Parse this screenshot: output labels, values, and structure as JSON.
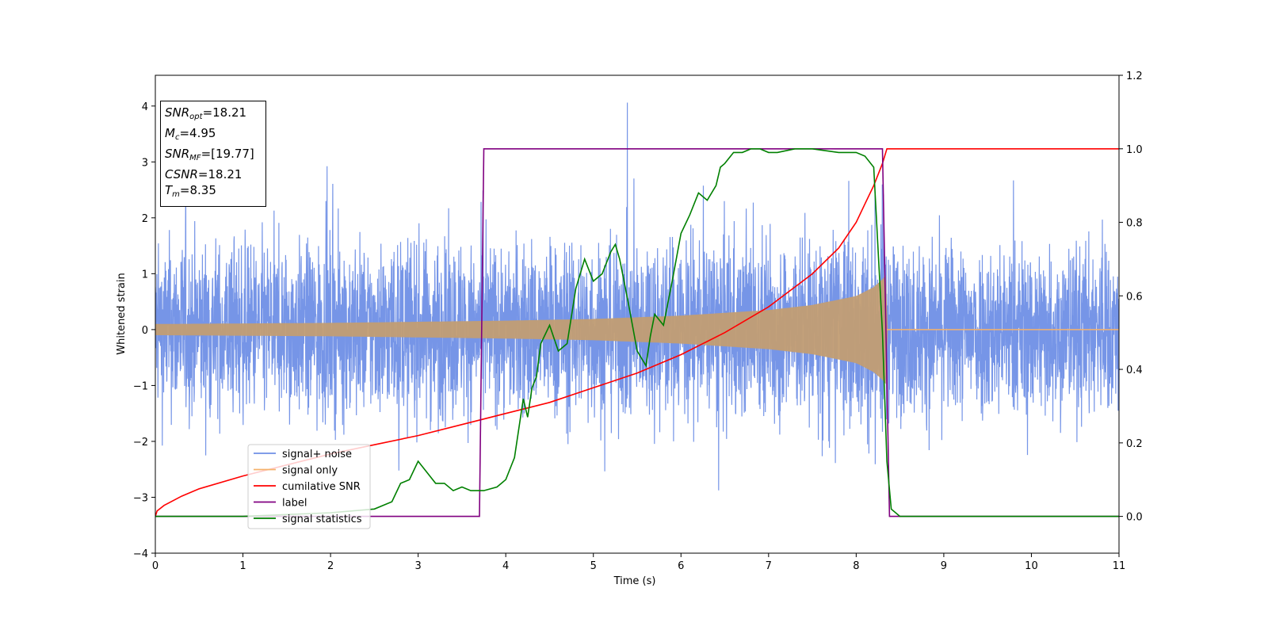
{
  "chart_data": {
    "type": "line",
    "title": "",
    "xlabel": "Time (s)",
    "ylabel": "Whitened strain",
    "y2label": "",
    "xlim": [
      0,
      11
    ],
    "ylim": [
      -4,
      4.55
    ],
    "y2lim": [
      -0.1,
      1.2
    ],
    "xticks": [
      "0",
      "1",
      "2",
      "3",
      "4",
      "5",
      "6",
      "7",
      "8",
      "9",
      "10",
      "11"
    ],
    "yticks": [
      "−4",
      "−3",
      "−2",
      "−1",
      "0",
      "1",
      "2",
      "3",
      "4"
    ],
    "y2ticks": [
      "0.0",
      "0.2",
      "0.4",
      "0.6",
      "0.8",
      "1.0",
      "1.2"
    ],
    "grid": false,
    "legend_position": "lower-left",
    "series": [
      {
        "name": "signal+ noise",
        "axis": "left",
        "color": "#6f8fe6",
        "noise_std": 0.75,
        "signal_end_time": 8.35
      },
      {
        "name": "signal only",
        "axis": "left",
        "color": "#f5b26b",
        "envelope_x": [
          0,
          2,
          4,
          5,
          6,
          7,
          7.5,
          8.0,
          8.2,
          8.3,
          8.35
        ],
        "envelope_y": [
          0.1,
          0.12,
          0.16,
          0.19,
          0.25,
          0.35,
          0.44,
          0.6,
          0.76,
          0.9,
          1.0
        ]
      },
      {
        "name": "cumilative SNR",
        "axis": "right",
        "color": "#ff0000",
        "x": [
          0,
          0.02,
          0.1,
          0.3,
          0.5,
          1,
          1.5,
          2,
          2.5,
          3,
          3.5,
          4,
          4.5,
          5,
          5.5,
          6,
          6.5,
          7,
          7.5,
          7.8,
          8.0,
          8.1,
          8.2,
          8.3,
          8.35,
          9,
          10,
          11
        ],
        "y": [
          0.0,
          0.015,
          0.03,
          0.055,
          0.075,
          0.11,
          0.14,
          0.17,
          0.195,
          0.22,
          0.25,
          0.28,
          0.31,
          0.35,
          0.39,
          0.44,
          0.5,
          0.57,
          0.66,
          0.73,
          0.8,
          0.85,
          0.9,
          0.96,
          1.0,
          1.0,
          1.0,
          1.0
        ]
      },
      {
        "name": "label",
        "axis": "right",
        "color": "#800080",
        "x": [
          0,
          3.7,
          3.75,
          8.3,
          8.38,
          11
        ],
        "y": [
          0,
          0,
          1,
          1,
          0,
          0
        ]
      },
      {
        "name": "signal statistics",
        "axis": "right",
        "color": "#008000",
        "x": [
          0,
          1,
          2,
          2.5,
          2.7,
          2.8,
          2.9,
          3.0,
          3.1,
          3.2,
          3.3,
          3.4,
          3.5,
          3.6,
          3.75,
          3.9,
          4.0,
          4.1,
          4.2,
          4.25,
          4.3,
          4.35,
          4.4,
          4.5,
          4.6,
          4.7,
          4.8,
          4.9,
          5.0,
          5.1,
          5.2,
          5.25,
          5.3,
          5.4,
          5.5,
          5.6,
          5.65,
          5.7,
          5.8,
          5.9,
          6.0,
          6.1,
          6.2,
          6.3,
          6.4,
          6.45,
          6.5,
          6.6,
          6.7,
          6.8,
          6.9,
          7.0,
          7.1,
          7.3,
          7.5,
          7.8,
          8.0,
          8.1,
          8.2,
          8.3,
          8.35,
          8.4,
          8.5,
          9,
          10,
          11
        ],
        "y": [
          0.0,
          0.0,
          0.01,
          0.02,
          0.04,
          0.09,
          0.1,
          0.15,
          0.12,
          0.09,
          0.09,
          0.07,
          0.08,
          0.07,
          0.07,
          0.08,
          0.1,
          0.16,
          0.32,
          0.27,
          0.35,
          0.38,
          0.47,
          0.52,
          0.45,
          0.47,
          0.62,
          0.7,
          0.64,
          0.66,
          0.72,
          0.74,
          0.7,
          0.58,
          0.45,
          0.41,
          0.49,
          0.55,
          0.52,
          0.64,
          0.77,
          0.82,
          0.88,
          0.86,
          0.9,
          0.95,
          0.96,
          0.99,
          0.99,
          1.0,
          1.0,
          0.99,
          0.99,
          1.0,
          1.0,
          0.99,
          0.99,
          0.98,
          0.95,
          0.5,
          0.15,
          0.02,
          0.0,
          0.0,
          0.0,
          0.0
        ]
      }
    ]
  },
  "info_box": {
    "snr_opt": {
      "sym": "SNR",
      "sub": "opt",
      "value": "=18.21"
    },
    "mc": {
      "sym": "M",
      "sub": "c",
      "value": "=4.95"
    },
    "snr_mf": {
      "sym": "SNR",
      "sub": "MF",
      "value": "=[19.77]"
    },
    "csnr": {
      "sym": "CSNR",
      "value": "=18.21"
    },
    "tm": {
      "sym": "T",
      "sub": "m",
      "value": "=8.35"
    }
  }
}
